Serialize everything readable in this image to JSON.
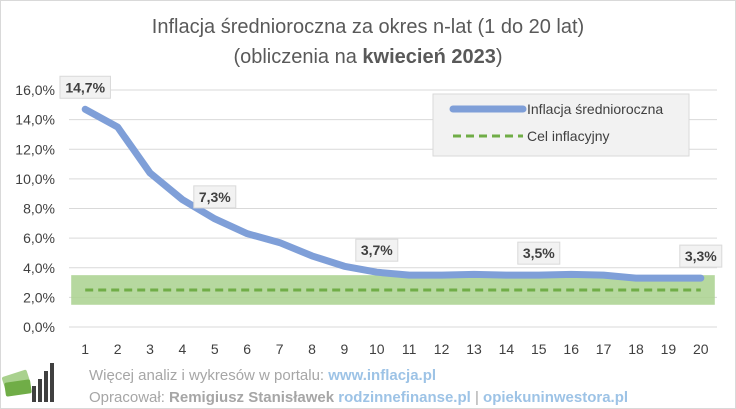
{
  "chart_data": {
    "type": "line",
    "title_line1": "Inflacja średnioroczna za okres n-lat (1 do 20 lat)",
    "title_line2_prefix": "(obliczenia  na ",
    "title_line2_bold": "kwiecień 2023",
    "title_line2_suffix": ")",
    "x": [
      1,
      2,
      3,
      4,
      5,
      6,
      7,
      8,
      9,
      10,
      11,
      12,
      13,
      14,
      15,
      16,
      17,
      18,
      19,
      20
    ],
    "ylim": [
      0,
      16
    ],
    "y_ticks": [
      "0,0%",
      "2,0%",
      "4,0%",
      "6,0%",
      "8,0%",
      "10,0%",
      "12,0%",
      "14,0%",
      "16,0%"
    ],
    "series": [
      {
        "name": "Inflacja średnioroczna",
        "color": "#7f9fd8",
        "values": [
          14.7,
          13.5,
          10.4,
          8.6,
          7.3,
          6.3,
          5.7,
          4.8,
          4.1,
          3.7,
          3.5,
          3.5,
          3.55,
          3.5,
          3.5,
          3.55,
          3.5,
          3.3,
          3.3,
          3.3
        ]
      },
      {
        "name": "Cel inflacyjny",
        "color": "#70ad47",
        "style": "dashed",
        "values": [
          2.5,
          2.5,
          2.5,
          2.5,
          2.5,
          2.5,
          2.5,
          2.5,
          2.5,
          2.5,
          2.5,
          2.5,
          2.5,
          2.5,
          2.5,
          2.5,
          2.5,
          2.5,
          2.5,
          2.5
        ]
      }
    ],
    "tolerance_band": {
      "low": 1.5,
      "high": 3.5,
      "color": "#a9d18e"
    },
    "data_labels": [
      {
        "x": 1,
        "value": 14.7,
        "text": "14,7%"
      },
      {
        "x": 5,
        "value": 7.3,
        "text": "7,3%"
      },
      {
        "x": 10,
        "value": 3.7,
        "text": "3,7%"
      },
      {
        "x": 15,
        "value": 3.5,
        "text": "3,5%"
      },
      {
        "x": 20,
        "value": 3.3,
        "text": "3,3%"
      }
    ],
    "grid": true,
    "legend_position": "top-right"
  },
  "footer": {
    "line1_text": "Więcej analiz i wykresów w portalu: ",
    "line1_link": "www.inflacja.pl",
    "line2_prefix": "Opracował: ",
    "line2_author": "Remigiusz Stanisławek",
    "line2_link1": "rodzinnefinanse.pl",
    "line2_sep": " | ",
    "line2_link2": "opiekuninwestora.pl"
  },
  "logo_icon": "money-chart-logo-icon"
}
